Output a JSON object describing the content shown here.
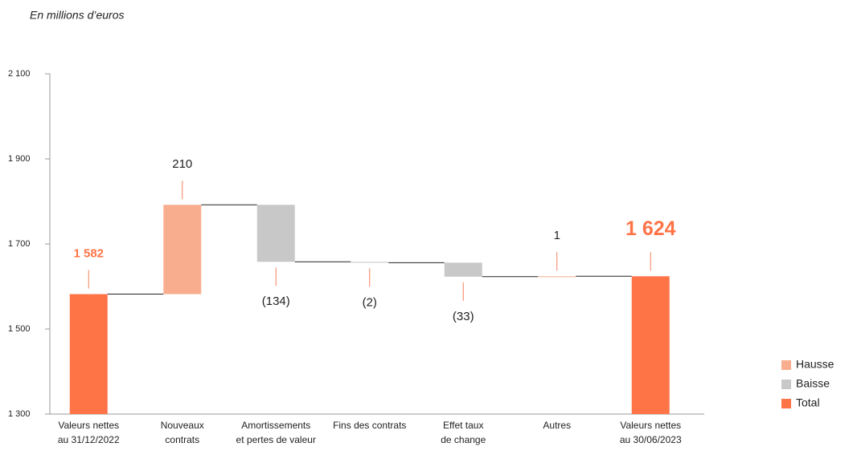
{
  "chart_data": {
    "type": "waterfall",
    "subtitle": "En millions d’euros",
    "categories": [
      [
        "Valeurs nettes",
        "au 31/12/2022"
      ],
      [
        "Nouveaux",
        "contrats"
      ],
      [
        "Amortissements",
        "et pertes de valeur"
      ],
      [
        "Fins des contrats"
      ],
      [
        "Effet taux",
        "de change"
      ],
      [
        "Autres"
      ],
      [
        "Valeurs nettes",
        "au  30/06/2023"
      ]
    ],
    "series": [
      {
        "name": "Hausse",
        "color": "#f9ad8f",
        "values": [
          null,
          210,
          null,
          null,
          null,
          1,
          null
        ],
        "value_labels": [
          null,
          "210",
          null,
          null,
          null,
          "1",
          null
        ]
      },
      {
        "name": "Baisse",
        "color": "#c8c8c8",
        "values": [
          null,
          null,
          -134,
          -2,
          -33,
          null,
          null
        ],
        "value_labels": [
          null,
          null,
          "(134)",
          "(2)",
          "(33)",
          null,
          null
        ]
      },
      {
        "name": "Total",
        "color": "#ff7447",
        "values": [
          1582,
          null,
          null,
          null,
          null,
          null,
          1624
        ],
        "value_labels": [
          "1 582",
          null,
          null,
          null,
          null,
          null,
          "1 624"
        ]
      }
    ],
    "ylim": [
      1300,
      2100
    ],
    "yticks": [
      {
        "value": 1300,
        "label": "1 300"
      },
      {
        "value": 1500,
        "label": "1 500"
      },
      {
        "value": 1700,
        "label": "1 700"
      },
      {
        "value": 1900,
        "label": "1 900"
      },
      {
        "value": 2100,
        "label": "2 100"
      }
    ],
    "legend": "right"
  }
}
